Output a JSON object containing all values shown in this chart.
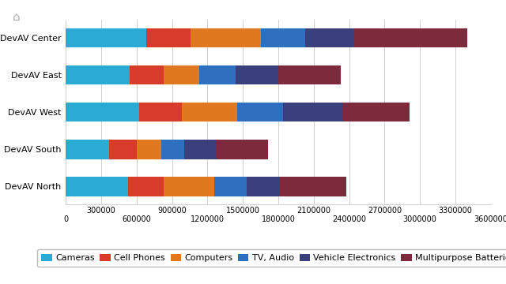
{
  "categories": [
    "DevAV Center",
    "DevAV East",
    "DevAV West",
    "DevAV South",
    "DevAV North"
  ],
  "series": {
    "Cameras": [
      680000,
      540000,
      620000,
      370000,
      530000
    ],
    "Cell Phones": [
      380000,
      290000,
      360000,
      230000,
      300000
    ],
    "Computers": [
      590000,
      300000,
      470000,
      210000,
      430000
    ],
    "TV, Audio": [
      380000,
      310000,
      390000,
      195000,
      270000
    ],
    "Vehicle Electronics": [
      410000,
      360000,
      510000,
      275000,
      275000
    ],
    "Multipurpose Batteries": [
      960000,
      530000,
      560000,
      430000,
      570000
    ]
  },
  "colors": {
    "Cameras": "#29ABD4",
    "Cell Phones": "#D83B2A",
    "Computers": "#E07820",
    "TV, Audio": "#2E6FBF",
    "Vehicle Electronics": "#3B3F7C",
    "Multipurpose Batteries": "#7D2A3C"
  },
  "xlim": [
    0,
    3600000
  ],
  "xtick_bottom": [
    0,
    600000,
    1200000,
    1800000,
    2400000,
    3000000,
    3600000
  ],
  "xtick_top": [
    300000,
    900000,
    1500000,
    2100000,
    2700000,
    3300000
  ],
  "background_color": "#FFFFFF",
  "grid_color": "#D0D0D0",
  "bar_height": 0.52,
  "legend_fontsize": 8,
  "tick_fontsize": 7
}
